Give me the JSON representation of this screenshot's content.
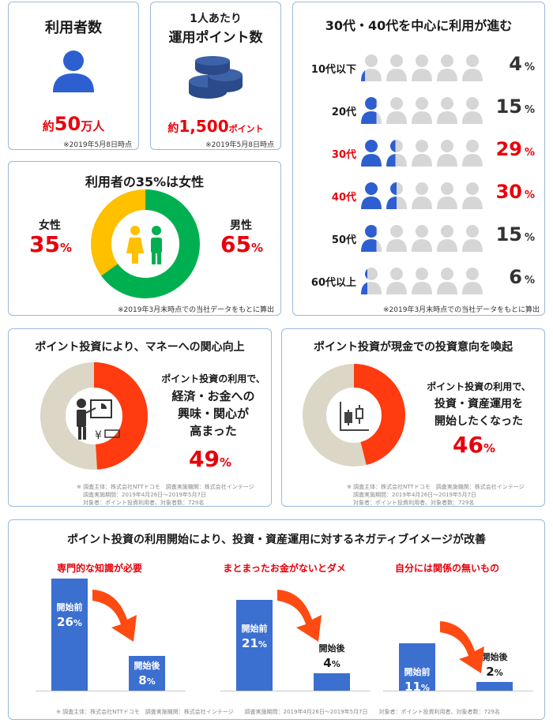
{
  "users": {
    "title": "利用者数",
    "prefix": "約",
    "value": "50",
    "unit": "万人",
    "note": "※2019年5月8日時点",
    "icon": "person-icon"
  },
  "points": {
    "title_line1": "1人あたり",
    "title_line2": "運用ポイント数",
    "prefix": "約",
    "value": "1,500",
    "unit": "ポイント",
    "note": "※2019年5月8日時点",
    "icon": "coins-icon"
  },
  "gender": {
    "title": "利用者の35%は女性",
    "female_label": "女性",
    "female_value": "35",
    "male_label": "男性",
    "male_value": "65",
    "pct": "%",
    "note": "※2019年3月末時点での当社データをもとに算出",
    "female_color": "#ffc000",
    "male_color": "#00b050",
    "icon": "female-male-icon"
  },
  "age": {
    "title": "30代・40代を中心に利用が進む",
    "note": "※2019年3月末時点での当社データをもとに算出",
    "pct": "%",
    "active_color": "#2e5fd0",
    "inactive_color": "#d6d6d6",
    "highlight_color": "#e8000b",
    "rows": [
      {
        "label": "10代以下",
        "value": "4",
        "fill": 0.2,
        "highlight": false
      },
      {
        "label": "20代",
        "value": "15",
        "fill": 0.75,
        "highlight": false
      },
      {
        "label": "30代",
        "value": "29",
        "fill": 1.45,
        "highlight": true
      },
      {
        "label": "40代",
        "value": "30",
        "fill": 1.5,
        "highlight": true
      },
      {
        "label": "50代",
        "value": "15",
        "fill": 0.75,
        "highlight": false
      },
      {
        "label": "60代以上",
        "value": "6",
        "fill": 0.3,
        "highlight": false
      }
    ]
  },
  "interest": {
    "title": "ポイント投資により、マネーへの関心向上",
    "text_line1": "ポイント投資の利用で、",
    "text_line2": "経済・お金への",
    "text_line3": "興味・関心が",
    "text_line4": "高まった",
    "value": "49",
    "pct": "%",
    "share": 0.49,
    "note_line1": "※ 調査主体：株式会社NTTドコモ　調査実施機関：株式会社インテージ",
    "note_line2": "調査実施期間：2019年4月26日～2019年5月7日",
    "note_line3": "対象者：ポイント投資利用者、対象者数：729名",
    "icon": "presentation-icon"
  },
  "intent": {
    "title": "ポイント投資が現金での投資意向を喚起",
    "text_line1": "ポイント投資の利用で、",
    "text_line2": "投資・資産運用を",
    "text_line3": "開始したくなった",
    "value": "46",
    "pct": "%",
    "share": 0.46,
    "note_line1": "※ 調査主体：株式会社NTTドコモ　調査実施機関：株式会社インテージ",
    "note_line2": "調査実施期間：2019年4月26日～2019年5月7日",
    "note_line3": "対象者：ポイント投資利用者、対象者数：729名",
    "icon": "candlestick-icon"
  },
  "negative": {
    "title": "ポイント投資の利用開始により、投資・資産運用に対するネガティブイメージが改善",
    "before_label": "開始前",
    "after_label": "開始後",
    "pct": "%",
    "note": "※ 調査主体：株式会社NTTドコモ　調査実施機関：株式会社インテージ　　調査実施期間：2019年4月26日～2019年5月7日　　対象者：ポイント投資利用者、対象者数：729名",
    "bar_color": "#3b6fd0",
    "arrow_color": "#ff4a12"
  },
  "chart_data": [
    {
      "type": "pie",
      "title": "利用者の35%は女性",
      "categories": [
        "女性",
        "男性"
      ],
      "values": [
        35,
        65
      ],
      "colors": [
        "#ffc000",
        "#00b050"
      ]
    },
    {
      "type": "bar",
      "title": "30代・40代を中心に利用が進む",
      "categories": [
        "10代以下",
        "20代",
        "30代",
        "40代",
        "50代",
        "60代以上"
      ],
      "values": [
        4,
        15,
        29,
        30,
        15,
        6
      ]
    },
    {
      "type": "pie",
      "title": "ポイント投資により、マネーへの関心向上",
      "values": [
        49,
        51
      ],
      "colors": [
        "#ff3b0f",
        "#dcd6c6"
      ]
    },
    {
      "type": "pie",
      "title": "ポイント投資が現金での投資意向を喚起",
      "values": [
        46,
        54
      ],
      "colors": [
        "#ff3b0f",
        "#dcd6c6"
      ]
    },
    {
      "type": "bar",
      "title": "ポイント投資の利用開始により、投資・資産運用に対するネガティブイメージが改善",
      "categories": [
        "専門的な知識が必要",
        "まとまったお金がないとダメ",
        "自分には関係の無いもの"
      ],
      "series": [
        {
          "name": "開始前",
          "values": [
            26,
            21,
            11
          ]
        },
        {
          "name": "開始後",
          "values": [
            8,
            4,
            2
          ]
        }
      ]
    }
  ],
  "neg_groups": [
    {
      "title": "専門的な知識が必要",
      "before": 26,
      "after": 8
    },
    {
      "title": "まとまったお金がないとダメ",
      "before": 21,
      "after": 4
    },
    {
      "title": "自分には関係の無いもの",
      "before": 11,
      "after": 2
    }
  ]
}
